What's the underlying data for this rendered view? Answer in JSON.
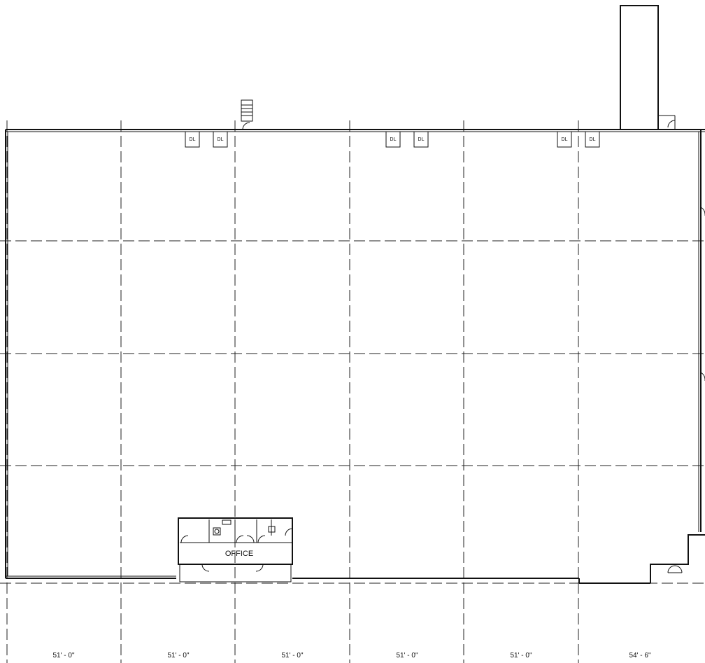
{
  "drawing": {
    "room_label": "OFFICE",
    "dock_levelers": [
      "DL",
      "DL",
      "DL",
      "DL",
      "DL",
      "DL"
    ],
    "bay_dimensions": [
      "51' - 0\"",
      "51' - 0\"",
      "51' - 0\"",
      "51' - 0\"",
      "51' - 0\"",
      "54' - 6\""
    ]
  }
}
